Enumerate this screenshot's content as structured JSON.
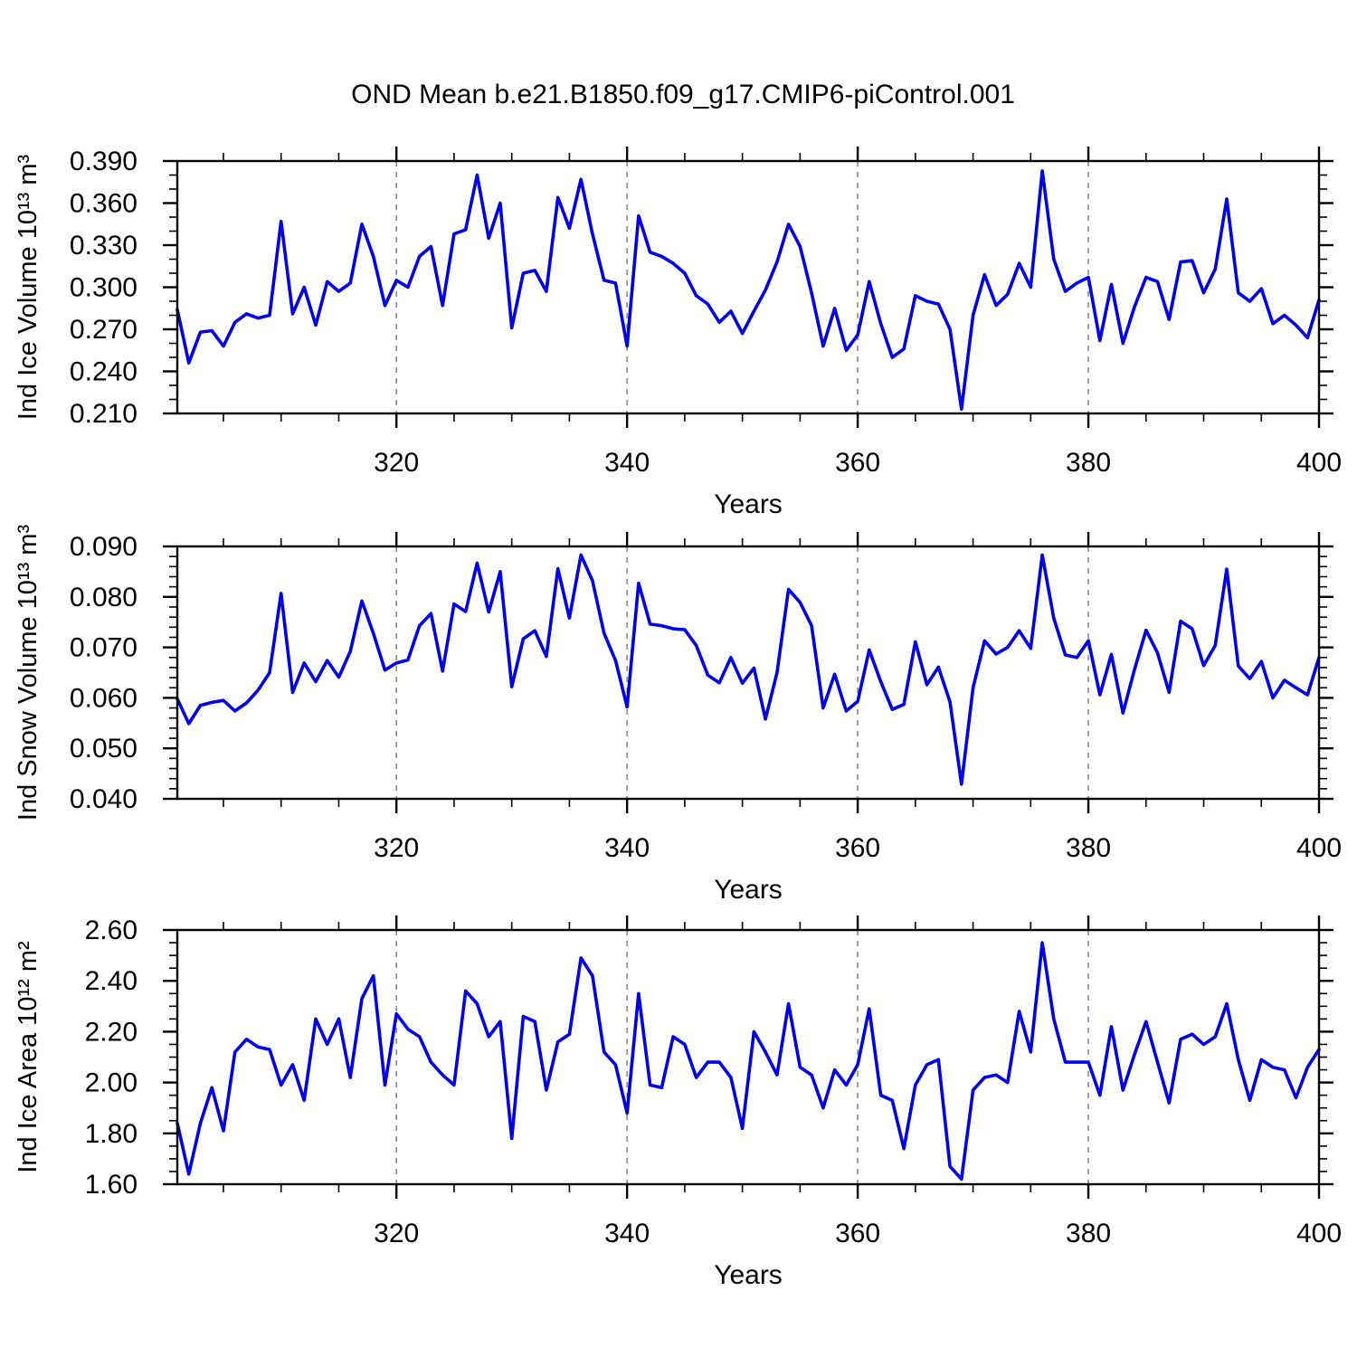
{
  "chart": {
    "title": "OND Mean b.e21.B1850.f09_g17.CMIP6-piControl.001",
    "xlabel": "Years",
    "background_color": "#ffffff",
    "line_color": "#0000EE",
    "axis_color": "#000000",
    "grid_color": "#8a8a8a",
    "x_range": [
      301,
      400
    ],
    "x_major_ticks": [
      320,
      340,
      360,
      380,
      400
    ],
    "x_major_tick_labels": [
      "320",
      "340",
      "360",
      "380",
      "400"
    ],
    "x_minor_step": 5,
    "x_gridlines": [
      320,
      340,
      360,
      380
    ],
    "years": [
      301,
      302,
      303,
      304,
      305,
      306,
      307,
      308,
      309,
      310,
      311,
      312,
      313,
      314,
      315,
      316,
      317,
      318,
      319,
      320,
      321,
      322,
      323,
      324,
      325,
      326,
      327,
      328,
      329,
      330,
      331,
      332,
      333,
      334,
      335,
      336,
      337,
      338,
      339,
      340,
      341,
      342,
      343,
      344,
      345,
      346,
      347,
      348,
      349,
      350,
      351,
      352,
      353,
      354,
      355,
      356,
      357,
      358,
      359,
      360,
      361,
      362,
      363,
      364,
      365,
      366,
      367,
      368,
      369,
      370,
      371,
      372,
      373,
      374,
      375,
      376,
      377,
      378,
      379,
      380,
      381,
      382,
      383,
      384,
      385,
      386,
      387,
      388,
      389,
      390,
      391,
      392,
      393,
      394,
      395,
      396,
      397,
      398,
      399,
      400
    ]
  },
  "chart_data": [
    {
      "type": "line",
      "name": "ice-volume",
      "ylabel": "Ind Ice Volume 10¹³ m³",
      "xlabel": "Years",
      "x_start": 301,
      "x_end": 400,
      "x_step": 1,
      "ylim": [
        0.21,
        0.39
      ],
      "y_major_step": 0.03,
      "y_minor_step": 0.01,
      "y_tick_labels": [
        "0.210",
        "0.240",
        "0.270",
        "0.300",
        "0.330",
        "0.360",
        "0.390"
      ],
      "grid": "vertical-dashed",
      "legend": "none",
      "values": [
        0.284,
        0.246,
        0.268,
        0.269,
        0.258,
        0.275,
        0.281,
        0.278,
        0.28,
        0.347,
        0.281,
        0.3,
        0.273,
        0.304,
        0.297,
        0.303,
        0.345,
        0.322,
        0.287,
        0.305,
        0.3,
        0.322,
        0.329,
        0.287,
        0.338,
        0.341,
        0.38,
        0.335,
        0.36,
        0.271,
        0.31,
        0.312,
        0.297,
        0.364,
        0.342,
        0.377,
        0.338,
        0.305,
        0.303,
        0.258,
        0.351,
        0.325,
        0.322,
        0.317,
        0.31,
        0.294,
        0.288,
        0.275,
        0.283,
        0.267,
        0.283,
        0.298,
        0.318,
        0.345,
        0.329,
        0.296,
        0.258,
        0.285,
        0.255,
        0.266,
        0.304,
        0.274,
        0.25,
        0.256,
        0.294,
        0.29,
        0.288,
        0.27,
        0.213,
        0.28,
        0.309,
        0.287,
        0.295,
        0.317,
        0.3,
        0.383,
        0.32,
        0.297,
        0.303,
        0.307,
        0.262,
        0.302,
        0.26,
        0.286,
        0.307,
        0.304,
        0.277,
        0.318,
        0.319,
        0.296,
        0.313,
        0.363,
        0.296,
        0.29,
        0.299,
        0.274,
        0.28,
        0.273,
        0.264,
        0.291
      ]
    },
    {
      "type": "line",
      "name": "snow-volume",
      "ylabel": "Ind Snow Volume 10¹³ m³",
      "xlabel": "Years",
      "x_start": 301,
      "x_end": 400,
      "x_step": 1,
      "ylim": [
        0.04,
        0.09
      ],
      "y_major_step": 0.01,
      "y_minor_step": 0.002,
      "y_tick_labels": [
        "0.040",
        "0.050",
        "0.060",
        "0.070",
        "0.080",
        "0.090"
      ],
      "grid": "vertical-dashed",
      "legend": "none",
      "values": [
        0.0598,
        0.0549,
        0.0585,
        0.0591,
        0.0595,
        0.0574,
        0.059,
        0.0615,
        0.065,
        0.0807,
        0.0611,
        0.0669,
        0.0632,
        0.0674,
        0.0641,
        0.0692,
        0.0792,
        0.0728,
        0.0655,
        0.0669,
        0.0675,
        0.0743,
        0.0767,
        0.0653,
        0.0786,
        0.0771,
        0.0867,
        0.077,
        0.085,
        0.0622,
        0.0717,
        0.0733,
        0.0682,
        0.0856,
        0.0758,
        0.0883,
        0.0832,
        0.0728,
        0.0674,
        0.0582,
        0.0827,
        0.0746,
        0.0743,
        0.0737,
        0.0735,
        0.0704,
        0.0645,
        0.063,
        0.068,
        0.0629,
        0.0659,
        0.0558,
        0.065,
        0.0815,
        0.0789,
        0.0743,
        0.058,
        0.0647,
        0.0574,
        0.0593,
        0.0695,
        0.0632,
        0.0577,
        0.0587,
        0.0711,
        0.0626,
        0.0661,
        0.0592,
        0.0429,
        0.062,
        0.0713,
        0.0687,
        0.07,
        0.0733,
        0.0698,
        0.0883,
        0.0758,
        0.0685,
        0.068,
        0.0713,
        0.0606,
        0.0686,
        0.057,
        0.0656,
        0.0734,
        0.0689,
        0.0611,
        0.0752,
        0.0737,
        0.0664,
        0.0704,
        0.0855,
        0.0663,
        0.0638,
        0.0672,
        0.06,
        0.0635,
        0.062,
        0.0606,
        0.068
      ]
    },
    {
      "type": "line",
      "name": "ice-area",
      "ylabel": "Ind Ice Area 10¹² m²",
      "xlabel": "Years",
      "x_start": 301,
      "x_end": 400,
      "x_step": 1,
      "ylim": [
        1.6,
        2.6
      ],
      "y_major_step": 0.2,
      "y_minor_step": 0.05,
      "y_tick_labels": [
        "1.60",
        "1.80",
        "2.00",
        "2.20",
        "2.40",
        "2.60"
      ],
      "grid": "vertical-dashed",
      "legend": "none",
      "values": [
        1.84,
        1.64,
        1.84,
        1.98,
        1.81,
        2.12,
        2.17,
        2.14,
        2.13,
        1.99,
        2.07,
        1.93,
        2.25,
        2.15,
        2.25,
        2.02,
        2.33,
        2.42,
        1.99,
        2.27,
        2.21,
        2.18,
        2.08,
        2.03,
        1.99,
        2.36,
        2.31,
        2.18,
        2.24,
        1.78,
        2.26,
        2.24,
        1.97,
        2.16,
        2.19,
        2.49,
        2.42,
        2.12,
        2.07,
        1.88,
        2.35,
        1.99,
        1.98,
        2.18,
        2.15,
        2.02,
        2.08,
        2.08,
        2.02,
        1.82,
        2.2,
        2.12,
        2.03,
        2.31,
        2.06,
        2.03,
        1.9,
        2.05,
        1.99,
        2.07,
        2.29,
        1.95,
        1.93,
        1.74,
        1.99,
        2.07,
        2.09,
        1.67,
        1.62,
        1.97,
        2.02,
        2.03,
        2.0,
        2.28,
        2.12,
        2.55,
        2.25,
        2.08,
        2.08,
        2.08,
        1.95,
        2.22,
        1.97,
        2.11,
        2.24,
        2.08,
        1.92,
        2.17,
        2.19,
        2.15,
        2.18,
        2.31,
        2.09,
        1.93,
        2.09,
        2.06,
        2.05,
        1.94,
        2.06,
        2.13
      ]
    }
  ]
}
